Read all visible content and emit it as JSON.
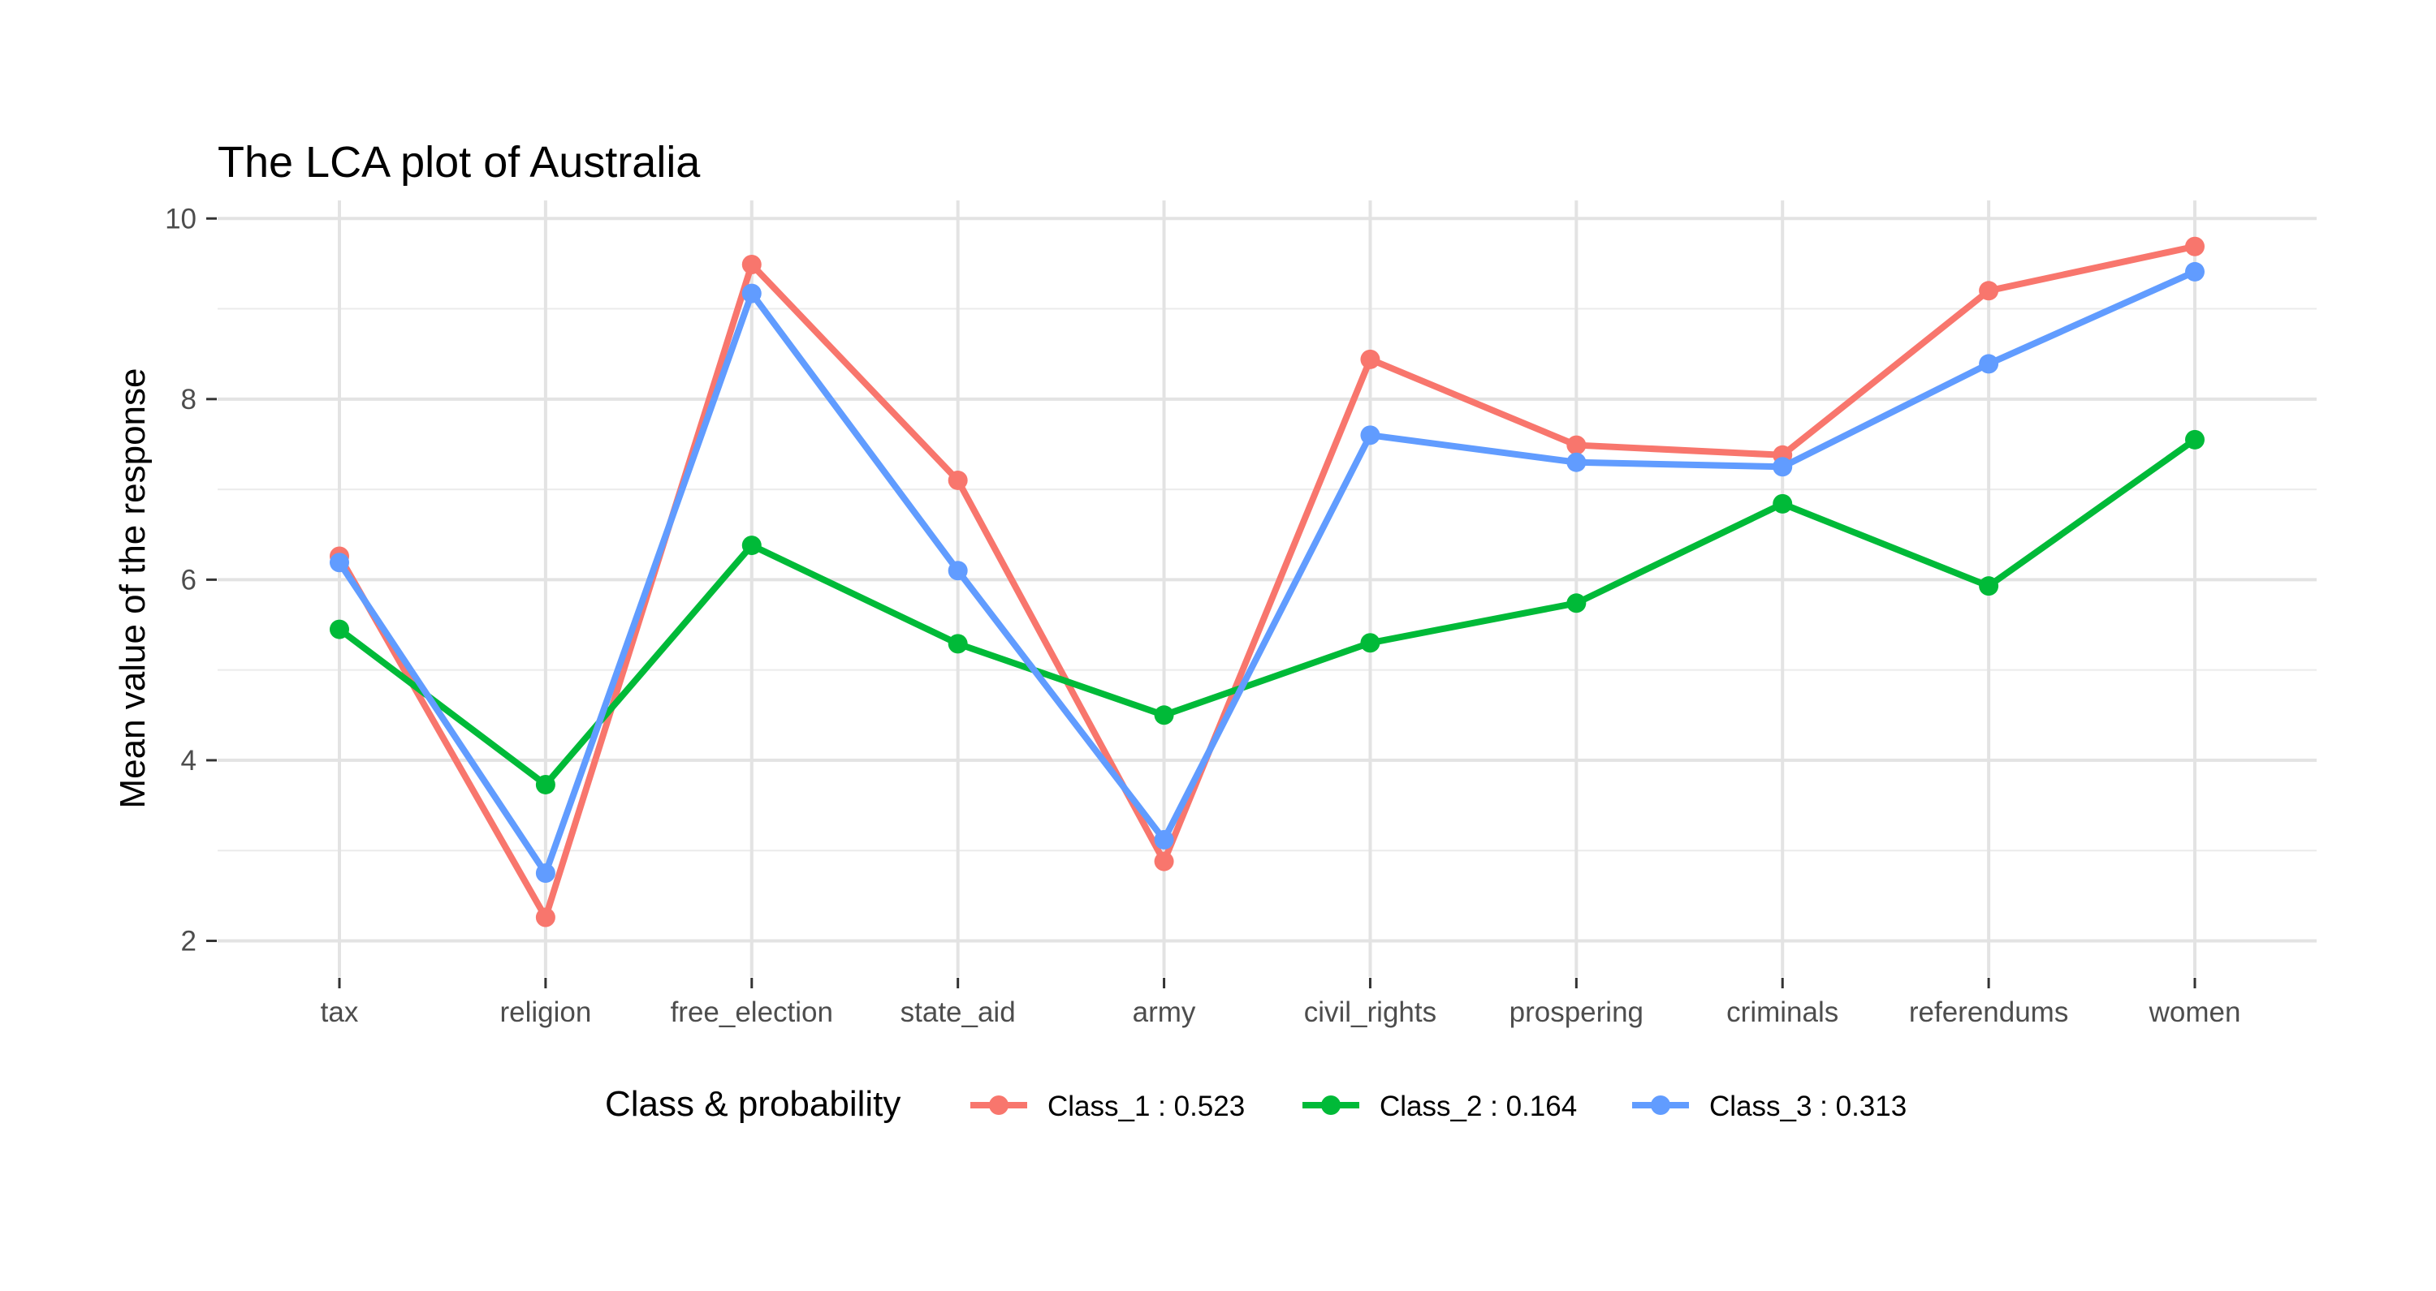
{
  "chart_data": {
    "type": "line",
    "title": "The LCA plot of Australia",
    "xlabel": "",
    "ylabel": "Mean value of the response",
    "categories": [
      "tax",
      "religion",
      "free_election",
      "state_aid",
      "army",
      "civil_rights",
      "prospering",
      "criminals",
      "referendums",
      "women"
    ],
    "ylim": [
      1.6,
      10.2
    ],
    "yticks": [
      2,
      4,
      6,
      8,
      10
    ],
    "grid": true,
    "legend": {
      "title": "Class & probability",
      "position": "bottom"
    },
    "series": [
      {
        "name": "Class_1 : 0.523",
        "color": "#F8766D",
        "values": [
          6.26,
          2.26,
          9.49,
          7.1,
          2.88,
          8.44,
          7.49,
          7.38,
          9.2,
          9.69
        ]
      },
      {
        "name": "Class_2 : 0.164",
        "color": "#00BA38",
        "values": [
          5.45,
          3.73,
          6.38,
          5.29,
          4.5,
          5.3,
          5.74,
          6.84,
          5.93,
          7.55
        ]
      },
      {
        "name": "Class_3 : 0.313",
        "color": "#619CFF",
        "values": [
          6.19,
          2.75,
          9.17,
          6.1,
          3.12,
          7.6,
          7.3,
          7.25,
          8.39,
          9.41
        ]
      }
    ]
  }
}
